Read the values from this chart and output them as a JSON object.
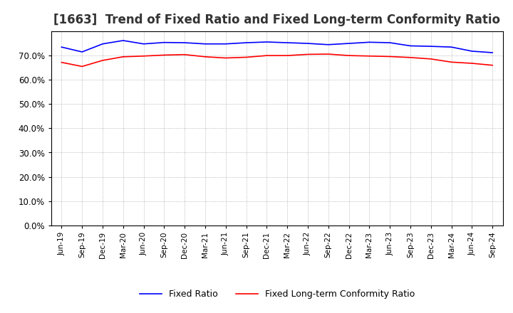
{
  "title": "[1663]  Trend of Fixed Ratio and Fixed Long-term Conformity Ratio",
  "title_fontsize": 12,
  "ylim": [
    0.0,
    0.8
  ],
  "yticks": [
    0.0,
    0.1,
    0.2,
    0.3,
    0.4,
    0.5,
    0.6,
    0.7
  ],
  "x_labels": [
    "Jun-19",
    "Sep-19",
    "Dec-19",
    "Mar-20",
    "Jun-20",
    "Sep-20",
    "Dec-20",
    "Mar-21",
    "Jun-21",
    "Sep-21",
    "Dec-21",
    "Mar-22",
    "Jun-22",
    "Sep-22",
    "Dec-22",
    "Mar-23",
    "Jun-23",
    "Sep-23",
    "Dec-23",
    "Mar-24",
    "Jun-24",
    "Sep-24"
  ],
  "fixed_ratio": [
    0.735,
    0.715,
    0.748,
    0.762,
    0.748,
    0.754,
    0.753,
    0.748,
    0.748,
    0.753,
    0.756,
    0.753,
    0.75,
    0.745,
    0.75,
    0.755,
    0.753,
    0.74,
    0.738,
    0.735,
    0.718,
    0.712
  ],
  "fixed_lt_ratio": [
    0.672,
    0.655,
    0.68,
    0.695,
    0.698,
    0.702,
    0.704,
    0.695,
    0.69,
    0.693,
    0.7,
    0.7,
    0.705,
    0.706,
    0.7,
    0.698,
    0.696,
    0.692,
    0.686,
    0.673,
    0.668,
    0.66
  ],
  "fixed_ratio_color": "#0000FF",
  "fixed_lt_ratio_color": "#FF0000",
  "line_width": 1.2,
  "background_color": "#FFFFFF",
  "grid_color": "#808080",
  "legend_fixed": "Fixed Ratio",
  "legend_fixed_lt": "Fixed Long-term Conformity Ratio"
}
